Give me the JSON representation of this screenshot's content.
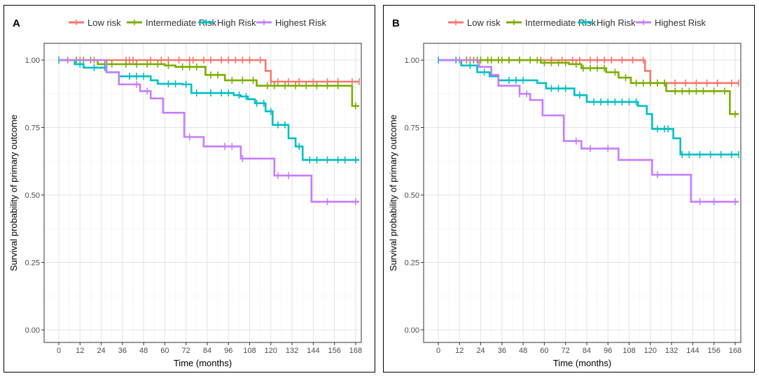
{
  "legend": {
    "entries": [
      {
        "label": "Low risk",
        "color": "#F8766D"
      },
      {
        "label": "Intermediate Risk",
        "color": "#7CAE00"
      },
      {
        "label": "High Risk",
        "color": "#00BFC4"
      },
      {
        "label": "Highest Risk",
        "color": "#C77CFF"
      }
    ]
  },
  "chart_data": [
    {
      "type": "line",
      "title": "A",
      "xlabel": "Time (months)",
      "ylabel": "Survival probability of primary outcome",
      "xlim": [
        0,
        170
      ],
      "ylim": [
        0,
        1
      ],
      "xticks": [
        0,
        12,
        24,
        36,
        48,
        60,
        72,
        84,
        96,
        108,
        120,
        132,
        144,
        156,
        168
      ],
      "yticks": [
        0.0,
        0.25,
        0.5,
        0.75,
        1.0
      ],
      "ytick_labels": [
        "0.00",
        "0.25",
        "0.50",
        "0.75",
        "1.00"
      ],
      "series": [
        {
          "name": "Low risk",
          "color": "#F8766D",
          "steps": [
            [
              0,
              1.0
            ],
            [
              117,
              0.96
            ],
            [
              120,
              0.92
            ],
            [
              170,
              0.92
            ]
          ],
          "censor": [
            5,
            12,
            20,
            38,
            40,
            42,
            52,
            58,
            62,
            68,
            74,
            76,
            82,
            86,
            92,
            96,
            100,
            104,
            108,
            114,
            120,
            124,
            130,
            136,
            144,
            152,
            158,
            166,
            170
          ]
        },
        {
          "name": "Intermediate Risk",
          "color": "#7CAE00",
          "steps": [
            [
              0,
              1.0
            ],
            [
              22,
              0.985
            ],
            [
              60,
              0.98
            ],
            [
              66,
              0.975
            ],
            [
              83,
              0.945
            ],
            [
              94,
              0.925
            ],
            [
              112,
              0.905
            ],
            [
              166,
              0.83
            ],
            [
              170,
              0.83
            ]
          ],
          "censor": [
            10,
            14,
            18,
            26,
            30,
            38,
            44,
            50,
            56,
            62,
            70,
            74,
            78,
            86,
            90,
            98,
            104,
            110,
            118,
            122,
            128,
            134,
            140,
            146,
            152,
            158,
            168
          ]
        },
        {
          "name": "High Risk",
          "color": "#00BFC4",
          "steps": [
            [
              0,
              1.0
            ],
            [
              9,
              0.985
            ],
            [
              14,
              0.972
            ],
            [
              27,
              0.955
            ],
            [
              34,
              0.94
            ],
            [
              52,
              0.925
            ],
            [
              56,
              0.912
            ],
            [
              70,
              0.91
            ],
            [
              75,
              0.878
            ],
            [
              99,
              0.87
            ],
            [
              103,
              0.865
            ],
            [
              107,
              0.855
            ],
            [
              111,
              0.84
            ],
            [
              117,
              0.81
            ],
            [
              121,
              0.76
            ],
            [
              130,
              0.71
            ],
            [
              134,
              0.68
            ],
            [
              138,
              0.63
            ],
            [
              170,
              0.63
            ]
          ],
          "censor": [
            0,
            12,
            20,
            26,
            40,
            44,
            48,
            62,
            66,
            72,
            78,
            86,
            92,
            96,
            102,
            106,
            112,
            116,
            120,
            124,
            128,
            136,
            142,
            146,
            152,
            158,
            162,
            168
          ]
        },
        {
          "name": "Highest Risk",
          "color": "#C77CFF",
          "steps": [
            [
              0,
              1.0
            ],
            [
              27,
              0.955
            ],
            [
              34,
              0.91
            ],
            [
              46,
              0.885
            ],
            [
              52,
              0.858
            ],
            [
              59,
              0.805
            ],
            [
              71,
              0.715
            ],
            [
              82,
              0.68
            ],
            [
              103,
              0.635
            ],
            [
              122,
              0.572
            ],
            [
              143,
              0.475
            ],
            [
              170,
              0.475
            ]
          ],
          "censor": [
            44,
            50,
            74,
            94,
            98,
            104,
            124,
            130,
            152,
            168
          ]
        }
      ]
    },
    {
      "type": "line",
      "title": "B",
      "xlabel": "Time (months)",
      "ylabel": "Survival probability of primary outcome",
      "xlim": [
        0,
        170
      ],
      "ylim": [
        0,
        1
      ],
      "xticks": [
        0,
        12,
        24,
        36,
        48,
        60,
        72,
        84,
        96,
        108,
        120,
        132,
        144,
        156,
        168
      ],
      "yticks": [
        0.0,
        0.25,
        0.5,
        0.75,
        1.0
      ],
      "ytick_labels": [
        "0.00",
        "0.25",
        "0.50",
        "0.75",
        "1.00"
      ],
      "series": [
        {
          "name": "Low risk",
          "color": "#F8766D",
          "steps": [
            [
              0,
              1.0
            ],
            [
              117,
              0.96
            ],
            [
              120,
              0.915
            ],
            [
              170,
              0.915
            ]
          ],
          "censor": [
            12,
            18,
            22,
            34,
            40,
            46,
            52,
            58,
            64,
            70,
            76,
            80,
            86,
            90,
            94,
            98,
            104,
            110,
            116,
            124,
            128,
            134,
            140,
            146,
            152,
            158,
            166,
            170
          ]
        },
        {
          "name": "Intermediate Risk",
          "color": "#7CAE00",
          "steps": [
            [
              0,
              1.0
            ],
            [
              58,
              0.99
            ],
            [
              74,
              0.985
            ],
            [
              81,
              0.97
            ],
            [
              95,
              0.955
            ],
            [
              102,
              0.935
            ],
            [
              109,
              0.915
            ],
            [
              129,
              0.885
            ],
            [
              165,
              0.8
            ],
            [
              170,
              0.8
            ]
          ],
          "censor": [
            16,
            20,
            22,
            24,
            28,
            30,
            34,
            36,
            40,
            46,
            52,
            56,
            60,
            64,
            68,
            72,
            78,
            82,
            86,
            90,
            94,
            100,
            106,
            112,
            116,
            120,
            124,
            128,
            134,
            138,
            142,
            146,
            150,
            156,
            162,
            168
          ]
        },
        {
          "name": "High Risk",
          "color": "#00BFC4",
          "steps": [
            [
              0,
              1.0
            ],
            [
              13,
              0.98
            ],
            [
              22,
              0.955
            ],
            [
              29,
              0.94
            ],
            [
              34,
              0.925
            ],
            [
              56,
              0.915
            ],
            [
              61,
              0.895
            ],
            [
              77,
              0.87
            ],
            [
              84,
              0.845
            ],
            [
              113,
              0.83
            ],
            [
              118,
              0.8
            ],
            [
              121,
              0.745
            ],
            [
              133,
              0.71
            ],
            [
              137,
              0.65
            ],
            [
              170,
              0.65
            ]
          ],
          "censor": [
            0,
            10,
            18,
            26,
            40,
            44,
            48,
            64,
            68,
            72,
            80,
            88,
            92,
            96,
            100,
            104,
            108,
            112,
            124,
            128,
            130,
            138,
            142,
            148,
            154,
            160,
            166,
            170
          ]
        },
        {
          "name": "Highest Risk",
          "color": "#C77CFF",
          "steps": [
            [
              0,
              1.0
            ],
            [
              23,
              0.975
            ],
            [
              30,
              0.945
            ],
            [
              34,
              0.905
            ],
            [
              46,
              0.875
            ],
            [
              52,
              0.852
            ],
            [
              59,
              0.795
            ],
            [
              71,
              0.7
            ],
            [
              81,
              0.672
            ],
            [
              102,
              0.63
            ],
            [
              121,
              0.575
            ],
            [
              143,
              0.475
            ],
            [
              170,
              0.475
            ]
          ],
          "censor": [
            46,
            50,
            78,
            86,
            96,
            124,
            148,
            156,
            168
          ]
        }
      ]
    }
  ]
}
